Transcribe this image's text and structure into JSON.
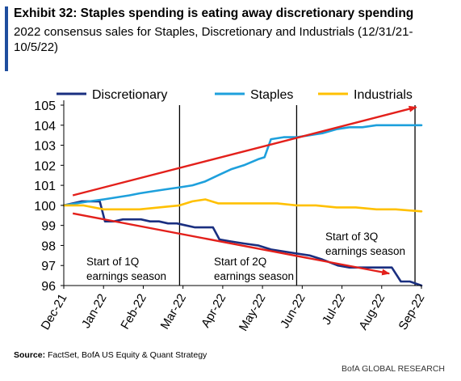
{
  "header": {
    "title": "Exhibit 32: Staples spending is eating away discretionary spending",
    "subtitle": "2022 consensus sales for Staples, Discretionary and Industrials (12/31/21-10/5/22)"
  },
  "footer": {
    "source_label": "Source:",
    "source_text": "FactSet, BofA US Equity & Quant Strategy",
    "brand": "BofA GLOBAL RESEARCH"
  },
  "colors": {
    "discretionary": "#1a2f80",
    "staples": "#1ea0dc",
    "industrials": "#ffc000",
    "trend_arrow": "#e3201b",
    "accent": "#1f4e9e"
  },
  "chart_data": {
    "type": "line",
    "x_tick_labels": [
      "Dec-21",
      "Jan-22",
      "Feb-22",
      "Mar-22",
      "Apr-22",
      "May-22",
      "Jun-22",
      "Jul-22",
      "Aug-22",
      "Sep-22"
    ],
    "x_range_dates": [
      "2021-12-31",
      "2022-10-05"
    ],
    "ylim": [
      96,
      105
    ],
    "y_ticks": [
      96,
      97,
      98,
      99,
      100,
      101,
      102,
      103,
      104,
      105
    ],
    "legend_position": "top",
    "grid": false,
    "series": [
      {
        "name": "Discretionary",
        "color_key": "discretionary",
        "points": [
          [
            "2021-12-31",
            100.0
          ],
          [
            "2022-01-07",
            100.1
          ],
          [
            "2022-01-14",
            100.2
          ],
          [
            "2022-01-21",
            100.2
          ],
          [
            "2022-01-28",
            100.2
          ],
          [
            "2022-02-01",
            99.2
          ],
          [
            "2022-02-08",
            99.2
          ],
          [
            "2022-02-15",
            99.3
          ],
          [
            "2022-02-22",
            99.3
          ],
          [
            "2022-03-01",
            99.3
          ],
          [
            "2022-03-08",
            99.2
          ],
          [
            "2022-03-15",
            99.2
          ],
          [
            "2022-03-22",
            99.1
          ],
          [
            "2022-03-29",
            99.1
          ],
          [
            "2022-04-05",
            99.0
          ],
          [
            "2022-04-12",
            98.9
          ],
          [
            "2022-04-19",
            98.9
          ],
          [
            "2022-04-26",
            98.9
          ],
          [
            "2022-05-01",
            98.3
          ],
          [
            "2022-05-10",
            98.2
          ],
          [
            "2022-05-20",
            98.1
          ],
          [
            "2022-05-31",
            98.0
          ],
          [
            "2022-06-10",
            97.8
          ],
          [
            "2022-06-20",
            97.7
          ],
          [
            "2022-06-30",
            97.6
          ],
          [
            "2022-07-10",
            97.5
          ],
          [
            "2022-07-20",
            97.3
          ],
          [
            "2022-08-01",
            97.0
          ],
          [
            "2022-08-10",
            96.9
          ],
          [
            "2022-08-20",
            96.9
          ],
          [
            "2022-08-31",
            96.9
          ],
          [
            "2022-09-05",
            96.9
          ],
          [
            "2022-09-12",
            96.9
          ],
          [
            "2022-09-19",
            96.2
          ],
          [
            "2022-09-26",
            96.2
          ],
          [
            "2022-10-05",
            96.0
          ]
        ]
      },
      {
        "name": "Staples",
        "color_key": "staples",
        "points": [
          [
            "2021-12-31",
            100.0
          ],
          [
            "2022-01-10",
            100.1
          ],
          [
            "2022-01-20",
            100.2
          ],
          [
            "2022-01-31",
            100.3
          ],
          [
            "2022-02-10",
            100.4
          ],
          [
            "2022-02-20",
            100.5
          ],
          [
            "2022-02-28",
            100.6
          ],
          [
            "2022-03-10",
            100.7
          ],
          [
            "2022-03-20",
            100.8
          ],
          [
            "2022-03-31",
            100.9
          ],
          [
            "2022-04-10",
            101.0
          ],
          [
            "2022-04-20",
            101.2
          ],
          [
            "2022-04-30",
            101.5
          ],
          [
            "2022-05-10",
            101.8
          ],
          [
            "2022-05-20",
            102.0
          ],
          [
            "2022-05-31",
            102.3
          ],
          [
            "2022-06-05",
            102.4
          ],
          [
            "2022-06-10",
            103.3
          ],
          [
            "2022-06-20",
            103.4
          ],
          [
            "2022-06-30",
            103.4
          ],
          [
            "2022-07-10",
            103.5
          ],
          [
            "2022-07-20",
            103.6
          ],
          [
            "2022-07-31",
            103.8
          ],
          [
            "2022-08-10",
            103.9
          ],
          [
            "2022-08-20",
            103.9
          ],
          [
            "2022-08-31",
            104.0
          ],
          [
            "2022-09-10",
            104.0
          ],
          [
            "2022-09-20",
            104.0
          ],
          [
            "2022-10-05",
            104.0
          ]
        ]
      },
      {
        "name": "Industrials",
        "color_key": "industrials",
        "points": [
          [
            "2021-12-31",
            100.0
          ],
          [
            "2022-01-15",
            100.0
          ],
          [
            "2022-01-31",
            99.8
          ],
          [
            "2022-02-15",
            99.8
          ],
          [
            "2022-02-28",
            99.8
          ],
          [
            "2022-03-15",
            99.9
          ],
          [
            "2022-03-31",
            100.0
          ],
          [
            "2022-04-10",
            100.2
          ],
          [
            "2022-04-20",
            100.3
          ],
          [
            "2022-04-30",
            100.1
          ],
          [
            "2022-05-15",
            100.1
          ],
          [
            "2022-05-31",
            100.1
          ],
          [
            "2022-06-15",
            100.1
          ],
          [
            "2022-06-30",
            100.0
          ],
          [
            "2022-07-15",
            100.0
          ],
          [
            "2022-07-31",
            99.9
          ],
          [
            "2022-08-15",
            99.9
          ],
          [
            "2022-08-31",
            99.8
          ],
          [
            "2022-09-15",
            99.8
          ],
          [
            "2022-10-05",
            99.7
          ]
        ]
      }
    ],
    "vertical_markers": [
      {
        "date": "2022-03-31"
      },
      {
        "date": "2022-06-30"
      },
      {
        "date": "2022-09-30"
      }
    ],
    "annotations": [
      {
        "line1": "Start of 1Q",
        "line2": "earnings season"
      },
      {
        "line1": "Start of 2Q",
        "line2": "earnings season"
      },
      {
        "line1": "Start of 3Q",
        "line2": "earnings season"
      }
    ],
    "trend_arrows": [
      {
        "from": [
          "2022-01-07",
          100.5
        ],
        "to": [
          "2022-10-01",
          104.9
        ]
      },
      {
        "from": [
          "2022-01-07",
          99.6
        ],
        "to": [
          "2022-09-10",
          96.6
        ]
      }
    ]
  }
}
